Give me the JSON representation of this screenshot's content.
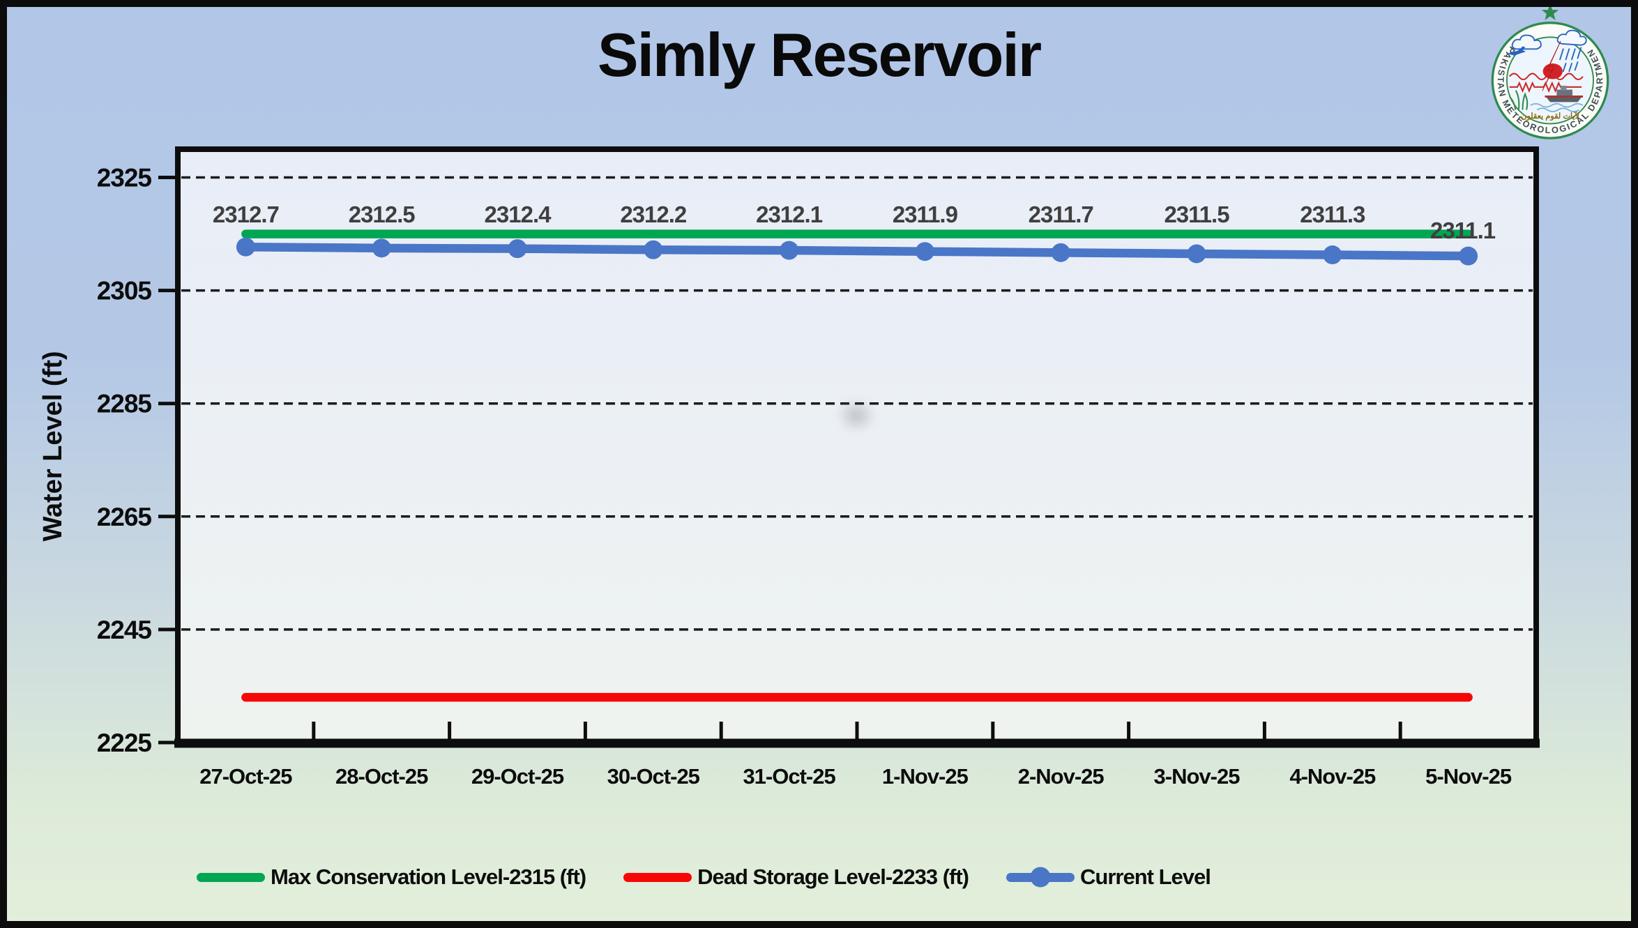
{
  "page": {
    "title": "Simly Reservoir"
  },
  "logo": {
    "ring_text": "PAKISTAN METEOROLOGICAL DEPARTMENT",
    "motto": "لآيات لقوم يعقلون"
  },
  "colors": {
    "max_conservation_green": "#00A651",
    "dead_storage_red": "#F60606",
    "current_level_blue": "#4A76C8",
    "data_label_gray": "#3F3F3F",
    "background_top": "#B2C6E8",
    "background_bottom": "#E3EFDA"
  },
  "chart_data": {
    "type": "line",
    "title": "Simly Reservoir",
    "xlabel": "",
    "ylabel": "Water Level (ft)",
    "ylim": [
      2225,
      2330
    ],
    "yticks": [
      2225,
      2245,
      2265,
      2285,
      2305,
      2325
    ],
    "grid": "horizontal-dashed",
    "legend_position": "bottom",
    "categories": [
      "27-Oct-25",
      "28-Oct-25",
      "29-Oct-25",
      "30-Oct-25",
      "31-Oct-25",
      "1-Nov-25",
      "2-Nov-25",
      "3-Nov-25",
      "4-Nov-25",
      "5-Nov-25"
    ],
    "series": [
      {
        "name": "Max Conservation Level-2315 (ft)",
        "color": "#00A651",
        "markers": false,
        "data_labels": false,
        "values": [
          2315,
          2315,
          2315,
          2315,
          2315,
          2315,
          2315,
          2315,
          2315,
          2315
        ]
      },
      {
        "name": "Dead Storage Level-2233 (ft)",
        "color": "#F60606",
        "markers": false,
        "data_labels": false,
        "values": [
          2233,
          2233,
          2233,
          2233,
          2233,
          2233,
          2233,
          2233,
          2233,
          2233
        ]
      },
      {
        "name": "Current Level",
        "color": "#4A76C8",
        "markers": true,
        "data_labels": true,
        "values": [
          2312.7,
          2312.5,
          2312.4,
          2312.2,
          2312.1,
          2311.9,
          2311.7,
          2311.5,
          2311.3,
          2311.1
        ]
      }
    ],
    "data_label_color": "#3F3F3F"
  }
}
